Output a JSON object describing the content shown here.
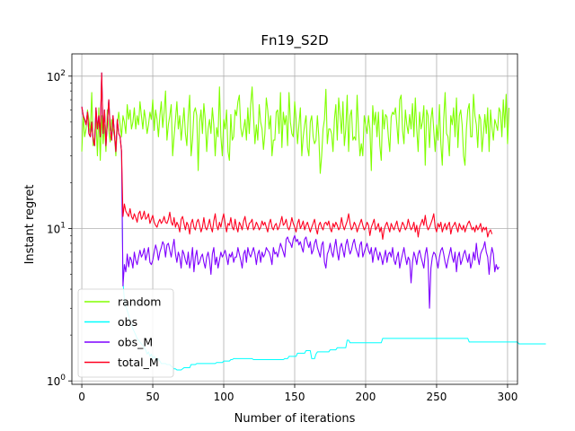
{
  "chart_data": {
    "type": "line",
    "title": "Fn19_S2D",
    "xlabel": "Number of iterations",
    "ylabel": "Instant regret",
    "yscale": "log",
    "xlim": [
      -7,
      307
    ],
    "ylim": [
      0.95,
      140
    ],
    "grid": true,
    "legend_position": "lower-left",
    "x_ticks": [
      {
        "value": 0,
        "label": "0"
      },
      {
        "value": 50,
        "label": "50"
      },
      {
        "value": 100,
        "label": "100"
      },
      {
        "value": 150,
        "label": "150"
      },
      {
        "value": 200,
        "label": "200"
      },
      {
        "value": 250,
        "label": "250"
      },
      {
        "value": 300,
        "label": "300"
      }
    ],
    "y_ticks": [
      {
        "value": 1,
        "base": "10",
        "exp": "0"
      },
      {
        "value": 10,
        "base": "10",
        "exp": "1"
      },
      {
        "value": 100,
        "base": "10",
        "exp": "2"
      }
    ],
    "series": [
      {
        "name": "random",
        "color": "#80ff00",
        "width": 1.1,
        "x_start": 0,
        "x_step": 1,
        "values": [
          32,
          56,
          40,
          45,
          60,
          52,
          42,
          78,
          35,
          40,
          52,
          30,
          62,
          28,
          55,
          36,
          48,
          32,
          60,
          44,
          37,
          52,
          45,
          40,
          30,
          48,
          58,
          48,
          40,
          55,
          50,
          42,
          65,
          52,
          60,
          45,
          50,
          62,
          45,
          55,
          48,
          68,
          55,
          45,
          60,
          52,
          42,
          48,
          58,
          52,
          70,
          44,
          60,
          52,
          40,
          55,
          68,
          46,
          58,
          80,
          38,
          48,
          55,
          65,
          30,
          40,
          52,
          68,
          45,
          55,
          38,
          48,
          62,
          42,
          35,
          55,
          75,
          30,
          38,
          58,
          62,
          55,
          24,
          50,
          60,
          42,
          66,
          52,
          32,
          45,
          52,
          42,
          62,
          48,
          30,
          46,
          40,
          85,
          40,
          30,
          52,
          45,
          60,
          32,
          28,
          56,
          38,
          40,
          60,
          55,
          68,
          75,
          46,
          40,
          45,
          52,
          38,
          62,
          42,
          65,
          85,
          54,
          36,
          48,
          38,
          65,
          50,
          45,
          33,
          42,
          72,
          60,
          45,
          55,
          30,
          38,
          38,
          58,
          60,
          42,
          78,
          34,
          58,
          48,
          55,
          35,
          78,
          50,
          42,
          40,
          68,
          52,
          36,
          48,
          62,
          30,
          40,
          48,
          55,
          34,
          30,
          50,
          55,
          40,
          36,
          38,
          55,
          40,
          23,
          30,
          45,
          52,
          82,
          36,
          45,
          45,
          42,
          32,
          52,
          65,
          38,
          72,
          55,
          42,
          68,
          35,
          45,
          75,
          32,
          55,
          60,
          38,
          40,
          38,
          75,
          44,
          30,
          36,
          30,
          55,
          48,
          42,
          55,
          45,
          24,
          64,
          48,
          58,
          40,
          58,
          35,
          28,
          60,
          45,
          56,
          54,
          40,
          32,
          54,
          58,
          56,
          62,
          48,
          36,
          70,
          75,
          44,
          36,
          60,
          48,
          42,
          56,
          45,
          66,
          40,
          72,
          45,
          32,
          58,
          45,
          50,
          64,
          26,
          60,
          55,
          34,
          52,
          62,
          44,
          32,
          48,
          38,
          65,
          36,
          26,
          52,
          78,
          42,
          40,
          30,
          55,
          48,
          62,
          40,
          72,
          34,
          55,
          60,
          48,
          30,
          26,
          45,
          60,
          66,
          40,
          40,
          76,
          55,
          48,
          34,
          56,
          52,
          32,
          42,
          56,
          42,
          62,
          32,
          60,
          46,
          38,
          52,
          48,
          44,
          62,
          58,
          40,
          70,
          46,
          76,
          36,
          62
        ]
      },
      {
        "name": "obs",
        "color": "#00ffff",
        "width": 1.0,
        "x_start": 0,
        "x_step": 1,
        "values": [
          63,
          55,
          52,
          48,
          58,
          42,
          40,
          50,
          38,
          35,
          62,
          45,
          55,
          40,
          105,
          42,
          60,
          35,
          50,
          70,
          45,
          38,
          55,
          42,
          32,
          52,
          42,
          40,
          32,
          4.5,
          3.4,
          3.1,
          2.9,
          2.7,
          2.5,
          2.3,
          2.2,
          2.1,
          2.0,
          1.9,
          1.85,
          1.8,
          1.75,
          1.7,
          1.65,
          1.6,
          1.5,
          1.55,
          1.45,
          1.5,
          1.4,
          1.45,
          1.4,
          1.35,
          1.4,
          1.35,
          1.3,
          1.3,
          1.3,
          1.3,
          1.28,
          1.28,
          1.28,
          1.25,
          1.23,
          1.2,
          1.2,
          1.18,
          1.18,
          1.18,
          1.18,
          1.2,
          1.22,
          1.22,
          1.22,
          1.22,
          1.22,
          1.28,
          1.28,
          1.28,
          1.28,
          1.3,
          1.3,
          1.3,
          1.3,
          1.3,
          1.3,
          1.3,
          1.3,
          1.3,
          1.3,
          1.3,
          1.3,
          1.3,
          1.3,
          1.32,
          1.32,
          1.32,
          1.32,
          1.32,
          1.35,
          1.35,
          1.35,
          1.35,
          1.35,
          1.38,
          1.38,
          1.4,
          1.4,
          1.4,
          1.4,
          1.4,
          1.4,
          1.4,
          1.4,
          1.4,
          1.4,
          1.4,
          1.4,
          1.4,
          1.4,
          1.38,
          1.38,
          1.38,
          1.38,
          1.38,
          1.38,
          1.38,
          1.38,
          1.38,
          1.38,
          1.38,
          1.38,
          1.38,
          1.38,
          1.38,
          1.38,
          1.38,
          1.38,
          1.38,
          1.38,
          1.38,
          1.38,
          1.4,
          1.4,
          1.4,
          1.45,
          1.45,
          1.45,
          1.45,
          1.45,
          1.45,
          1.52,
          1.52,
          1.52,
          1.52,
          1.52,
          1.52,
          1.58,
          1.58,
          1.58,
          1.58,
          1.4,
          1.4,
          1.4,
          1.5,
          1.55,
          1.55,
          1.55,
          1.55,
          1.55,
          1.55,
          1.55,
          1.55,
          1.55,
          1.6,
          1.6,
          1.6,
          1.6,
          1.6,
          1.65,
          1.65,
          1.65,
          1.65,
          1.65,
          1.65,
          1.65,
          1.85,
          1.85,
          1.78,
          1.78,
          1.78,
          1.78,
          1.78,
          1.78,
          1.78,
          1.78,
          1.78,
          1.78,
          1.78,
          1.78,
          1.78,
          1.78,
          1.78,
          1.78,
          1.78,
          1.78,
          1.78,
          1.78,
          1.78,
          1.78,
          1.78,
          1.9,
          1.9,
          1.9,
          1.9,
          1.9,
          1.9,
          1.9,
          1.9,
          1.9,
          1.9,
          1.9,
          1.9,
          1.9,
          1.9,
          1.9,
          1.9,
          1.9,
          1.9,
          1.9,
          1.9,
          1.9,
          1.9,
          1.9,
          1.9,
          1.9,
          1.9,
          1.9,
          1.9,
          1.9,
          1.9,
          1.9,
          1.9,
          1.9,
          1.9,
          1.9,
          1.9,
          1.9,
          1.9,
          1.9,
          1.9,
          1.9,
          1.9,
          1.9,
          1.9,
          1.9,
          1.9,
          1.9,
          1.9,
          1.9,
          1.9,
          1.9,
          1.9,
          1.9,
          1.9,
          1.9,
          1.9,
          1.9,
          1.9,
          1.9,
          1.9,
          1.9,
          1.8,
          1.8,
          1.8,
          1.8,
          1.8,
          1.8,
          1.8,
          1.8,
          1.8,
          1.8,
          1.8,
          1.8,
          1.8,
          1.8,
          1.8,
          1.8,
          1.8,
          1.8,
          1.8,
          1.8,
          1.8,
          1.8,
          1.8,
          1.8,
          1.8,
          1.8,
          1.8,
          1.8,
          1.8,
          1.8,
          1.8,
          1.8,
          1.8,
          1.8,
          1.8,
          1.75,
          1.75,
          1.75,
          1.75,
          1.75,
          1.75,
          1.75,
          1.75,
          1.75,
          1.75,
          1.75,
          1.75,
          1.75,
          1.75,
          1.75,
          1.75,
          1.75,
          1.75,
          1.75,
          1.75
        ]
      },
      {
        "name": "obs_M",
        "color": "#7f00ff",
        "width": 1.1,
        "x_start": 0,
        "x_step": 1,
        "values": [
          63,
          55,
          52,
          48,
          58,
          42,
          40,
          50,
          38,
          35,
          62,
          45,
          55,
          40,
          105,
          42,
          60,
          35,
          50,
          70,
          45,
          38,
          55,
          42,
          32,
          52,
          42,
          40,
          32,
          4.2,
          5.8,
          5.2,
          6.8,
          5.6,
          6.5,
          6.2,
          5.5,
          7.0,
          6.2,
          5.8,
          6.5,
          7.2,
          6.5,
          6.8,
          7.4,
          6.2,
          6.8,
          7.5,
          6.0,
          5.8,
          6.2,
          7.0,
          7.8,
          7.2,
          6.2,
          7.0,
          7.5,
          8.2,
          7.8,
          6.5,
          7.8,
          8.0,
          7.2,
          6.5,
          7.5,
          8.5,
          6.8,
          6.0,
          7.0,
          6.5,
          5.5,
          7.2,
          6.8,
          6.2,
          5.8,
          7.0,
          5.5,
          6.2,
          7.5,
          5.2,
          6.5,
          7.2,
          5.8,
          6.0,
          6.5,
          6.8,
          6.0,
          5.5,
          6.5,
          7.0,
          6.2,
          5.0,
          6.8,
          7.5,
          5.8,
          6.5,
          5.5,
          6.2,
          7.0,
          6.5,
          6.8,
          7.2,
          6.5,
          5.8,
          6.8,
          6.5,
          7.0,
          6.0,
          6.5,
          6.5,
          7.5,
          6.8,
          6.2,
          5.5,
          6.8,
          7.2,
          6.0,
          7.5,
          6.8,
          6.5,
          7.0,
          7.5,
          6.8,
          5.8,
          6.8,
          7.2,
          6.0,
          7.0,
          6.5,
          6.8,
          7.5,
          7.2,
          7.0,
          6.5,
          5.8,
          7.5,
          6.8,
          7.0,
          6.5,
          7.2,
          8.0,
          7.5,
          7.0,
          6.5,
          8.5,
          8.8,
          8.2,
          8.0,
          7.5,
          8.5,
          9.0,
          8.2,
          8.5,
          7.8,
          8.2,
          7.5,
          7.0,
          8.5,
          8.8,
          8.0,
          7.5,
          8.2,
          6.8,
          7.2,
          8.0,
          8.5,
          7.5,
          7.0,
          6.5,
          7.8,
          8.2,
          6.0,
          5.5,
          6.8,
          7.2,
          8.0,
          7.0,
          6.5,
          7.5,
          8.5,
          7.0,
          6.2,
          7.5,
          8.0,
          7.2,
          6.5,
          7.8,
          8.5,
          7.5,
          6.8,
          7.2,
          8.0,
          8.5,
          7.5,
          7.0,
          6.5,
          7.8,
          8.2,
          6.5,
          7.0,
          7.5,
          8.0,
          7.2,
          6.8,
          7.5,
          6.0,
          7.0,
          7.5,
          6.8,
          6.2,
          7.0,
          6.5,
          5.8,
          6.5,
          7.2,
          6.0,
          6.8,
          7.0,
          6.5,
          7.5,
          6.2,
          5.8,
          6.5,
          7.0,
          5.5,
          6.2,
          6.8,
          7.5,
          6.5,
          5.8,
          6.5,
          6.2,
          4.4,
          6.0,
          7.0,
          6.5,
          5.8,
          6.8,
          7.2,
          6.5,
          6.0,
          5.5,
          6.8,
          7.5,
          6.2,
          3.0,
          5.5,
          6.5,
          7.0,
          6.8,
          6.2,
          5.5,
          6.5,
          7.2,
          7.5,
          6.8,
          6.0,
          5.5,
          6.2,
          6.8,
          7.5,
          6.5,
          6.0,
          7.0,
          5.2,
          6.5,
          7.0,
          5.8,
          6.2,
          6.8,
          7.2,
          6.5,
          6.0,
          6.8,
          5.5,
          6.0,
          7.0,
          6.2,
          8.0,
          6.5,
          5.8,
          6.8,
          7.2,
          7.5,
          8.2,
          7.0,
          6.5,
          5.0,
          6.5,
          7.5,
          6.8,
          5.2,
          5.8,
          5.4,
          5.6
        ]
      },
      {
        "name": "total_M",
        "color": "#ff0020",
        "width": 1.1,
        "x_start": 0,
        "x_step": 1,
        "values": [
          63,
          55,
          52,
          48,
          58,
          42,
          40,
          50,
          38,
          35,
          62,
          45,
          55,
          40,
          105,
          42,
          60,
          35,
          50,
          70,
          45,
          38,
          55,
          42,
          32,
          52,
          42,
          40,
          32,
          12,
          14.5,
          13,
          12.5,
          12,
          13.5,
          12,
          11.5,
          12.5,
          11.8,
          11,
          12.5,
          13,
          11.5,
          12,
          13,
          11.5,
          11.8,
          12.5,
          10.8,
          11.5,
          12.2,
          11,
          10.5,
          10.2,
          11,
          11.5,
          10.8,
          11.2,
          12,
          11,
          10.8,
          11.5,
          12.8,
          11,
          10.5,
          11.8,
          10.2,
          11,
          10.5,
          9.5,
          11.5,
          12,
          10.8,
          9.8,
          11,
          10.5,
          9.2,
          10.8,
          11.5,
          10.2,
          9.8,
          11,
          11.5,
          10.5,
          9.5,
          10.2,
          11.8,
          10.2,
          9.8,
          10.5,
          11.5,
          10.2,
          9.5,
          11.2,
          12.5,
          10.5,
          9.8,
          11.0,
          10.2,
          11.5,
          12.5,
          10.8,
          9.5,
          10.8,
          10.5,
          11.8,
          10.2,
          9.8,
          11.5,
          10.2,
          9.5,
          11.0,
          10.5,
          9.8,
          11.2,
          12.0,
          10.5,
          9.8,
          10.8,
          11.0,
          11.5,
          9.8,
          10.2,
          11.0,
          10.5,
          9.8,
          10.2,
          11.2,
          10.5,
          11.0,
          10.2,
          9.5,
          10.8,
          11.5,
          10.2,
          9.8,
          10.5,
          10.8,
          9.8,
          10.2,
          11.0,
          12.0,
          10.5,
          10.8,
          11.5,
          10.2,
          9.8,
          10.5,
          11.8,
          10.8,
          10.2,
          9.5,
          10.8,
          11.5,
          10.0,
          10.5,
          11.2,
          9.8,
          10.5,
          11.0,
          10.2,
          9.5,
          10.2,
          10.8,
          11.5,
          10.0,
          9.2,
          10.5,
          11.0,
          10.2,
          9.8,
          10.8,
          11.0,
          10.5,
          11.2,
          10.0,
          9.5,
          10.8,
          10.2,
          11.0,
          10.5,
          9.8,
          10.2,
          11.8,
          10.5,
          9.8,
          10.5,
          11.2,
          12.5,
          10.8,
          9.8,
          10.2,
          11.0,
          10.5,
          9.5,
          10.2,
          10.8,
          11.5,
          10.5,
          9.8,
          10.2,
          11.0,
          10.5,
          9.0,
          10.2,
          10.8,
          11.5,
          9.8,
          10.2,
          10.8,
          9.5,
          10.2,
          8.5,
          9.8,
          10.5,
          11.0,
          10.2,
          9.5,
          10.8,
          10.2,
          9.8,
          10.5,
          11.2,
          10.0,
          9.5,
          10.2,
          11.0,
          10.5,
          9.8,
          10.2,
          11.5,
          10.5,
          9.8,
          10.2,
          11.0,
          9.5,
          10.5,
          8.8,
          10.2,
          10.8,
          11.5,
          10.5,
          12.2,
          10.5,
          9.8,
          10.2,
          10.8,
          11.5,
          12.5,
          10.2,
          9.5,
          10.8,
          10.2,
          11.0,
          9.5,
          10.2,
          10.8,
          9.8,
          10.5,
          11.0,
          9.2,
          10.2,
          10.5,
          11.0,
          10.2,
          9.5,
          10.8,
          10.2,
          9.8,
          10.5,
          9.5,
          10.2,
          10.8,
          11.2,
          10.5,
          9.8,
          10.2,
          9.5,
          10.5,
          9.8,
          10.2,
          10.8,
          9.5,
          10.2,
          9.8,
          10.2,
          8.8,
          9.5,
          9.8,
          9.2
        ]
      }
    ]
  }
}
